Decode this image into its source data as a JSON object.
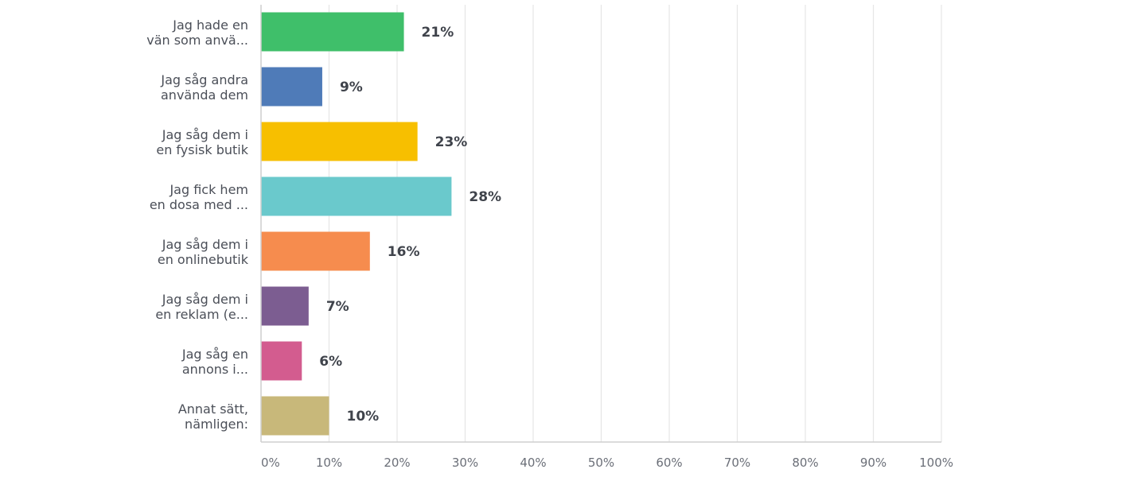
{
  "chart_data": {
    "type": "bar",
    "orientation": "horizontal",
    "categories": [
      [
        "Jag hade en",
        "vän som anvä..."
      ],
      [
        "Jag såg andra",
        "använda dem"
      ],
      [
        "Jag såg dem i",
        "en fysisk butik"
      ],
      [
        "Jag fick hem",
        "en dosa med ..."
      ],
      [
        "Jag såg dem i",
        "en onlinebutik"
      ],
      [
        "Jag såg dem i",
        "en reklam (e..."
      ],
      [
        "Jag såg en",
        "annons i..."
      ],
      [
        "Annat sätt,",
        "nämligen:"
      ]
    ],
    "values": [
      21,
      9,
      23,
      28,
      16,
      7,
      6,
      10
    ],
    "value_labels": [
      "21%",
      "9%",
      "23%",
      "28%",
      "16%",
      "7%",
      "6%",
      "10%"
    ],
    "colors": [
      "#3fbf6a",
      "#4f7bb8",
      "#f7bf00",
      "#6ac9cc",
      "#f68c4e",
      "#7c5d91",
      "#d35c8f",
      "#c8b87a"
    ],
    "xlim": [
      0,
      100
    ],
    "x_ticks": [
      "0%",
      "10%",
      "20%",
      "30%",
      "40%",
      "50%",
      "60%",
      "70%",
      "80%",
      "90%",
      "100%"
    ],
    "title": "",
    "xlabel": "",
    "ylabel": "",
    "grid": true,
    "legend": "none"
  }
}
